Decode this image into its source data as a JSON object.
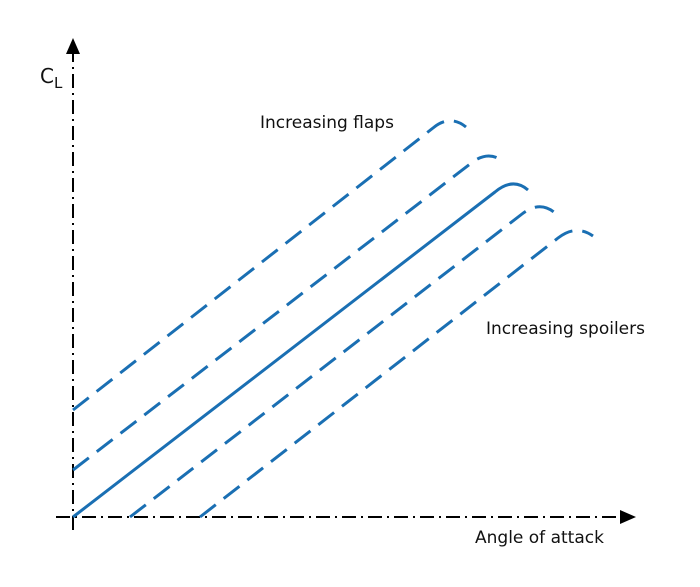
{
  "diagram": {
    "y_axis_label": {
      "main": "C",
      "subscript": "L"
    },
    "x_axis_label": "Angle of attack",
    "flaps_label": "Increasing flaps",
    "spoilers_label": "Increasing spoilers"
  },
  "colors": {
    "curve": "#1a6fb3",
    "axis": "#000000",
    "background": "#ffffff"
  },
  "curves": [
    {
      "name": "flaps-curve-2",
      "style": "dashed"
    },
    {
      "name": "flaps-curve-1",
      "style": "dashed"
    },
    {
      "name": "baseline-curve",
      "style": "solid"
    },
    {
      "name": "spoilers-curve-1",
      "style": "dashed"
    },
    {
      "name": "spoilers-curve-2",
      "style": "dashed"
    }
  ]
}
